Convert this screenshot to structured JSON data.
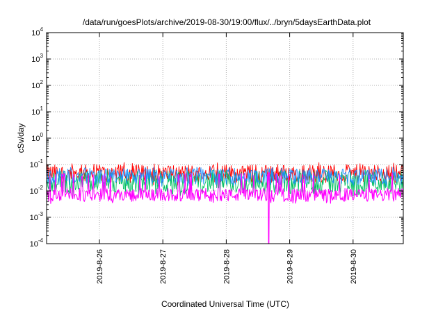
{
  "chart_data": {
    "type": "line",
    "title": "/data/run/goesPlots/archive/2019-08-30/19:00/flux/../bryn/5daysEarthData.plot",
    "xlabel": "Coordinated Universal Time (UTC)",
    "ylabel": "cSv/day",
    "x_range": [
      "2019-08-25T04:00",
      "2019-08-30T19:00"
    ],
    "x_ticks": [
      "2019-8-26",
      "2019-8-27",
      "2019-8-28",
      "2019-8-29",
      "2019-8-30"
    ],
    "x_tick_dates": [
      "2019-08-26",
      "2019-08-27",
      "2019-08-28",
      "2019-08-29",
      "2019-08-30"
    ],
    "y_scale": "log",
    "ylim": [
      0.0001,
      10000
    ],
    "y_ticks": [
      {
        "base": "10",
        "exp": "4"
      },
      {
        "base": "10",
        "exp": "3"
      },
      {
        "base": "10",
        "exp": "2"
      },
      {
        "base": "10",
        "exp": "1"
      },
      {
        "base": "10",
        "exp": "0"
      },
      {
        "base": "10",
        "exp": "-1"
      },
      {
        "base": "10",
        "exp": "-2"
      },
      {
        "base": "10",
        "exp": "-3"
      },
      {
        "base": "10",
        "exp": "-4"
      }
    ],
    "grid": true,
    "series": [
      {
        "color": "#ff0000",
        "baseline": 0.045,
        "spread": 0.35,
        "spike_max": 0.12
      },
      {
        "color": "#00c060",
        "baseline": 0.022,
        "spread": 0.45,
        "spike_max": 0.05
      },
      {
        "color": "#1e90ff",
        "baseline": 0.035,
        "spread": 0.3,
        "spike_max": 0.08
      },
      {
        "color": "#ff00ff",
        "baseline": 0.007,
        "spread": 0.25,
        "spike_max": 0.05,
        "min_event": {
          "date": "2019-08-28T16:00",
          "value": 0.0001
        }
      }
    ]
  }
}
